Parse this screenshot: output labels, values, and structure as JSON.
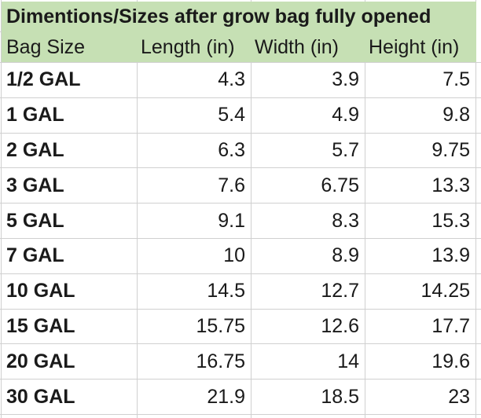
{
  "title": "Dimentions/Sizes after grow bag fully opened",
  "columns": {
    "bag_size": "Bag Size",
    "length": "Length (in)",
    "width": "Width (in)",
    "height": "Height (in)"
  },
  "rows": [
    {
      "size": "1/2 GAL",
      "length": "4.3",
      "width": "3.9",
      "height": "7.5"
    },
    {
      "size": "1 GAL",
      "length": "5.4",
      "width": "4.9",
      "height": "9.8"
    },
    {
      "size": "2 GAL",
      "length": "6.3",
      "width": "5.7",
      "height": "9.75"
    },
    {
      "size": "3 GAL",
      "length": "7.6",
      "width": "6.75",
      "height": "13.3"
    },
    {
      "size": "5 GAL",
      "length": "9.1",
      "width": "8.3",
      "height": "15.3"
    },
    {
      "size": "7 GAL",
      "length": "10",
      "width": "8.9",
      "height": "13.9"
    },
    {
      "size": "10 GAL",
      "length": "14.5",
      "width": "12.7",
      "height": "14.25"
    },
    {
      "size": "15 GAL",
      "length": "15.75",
      "width": "12.6",
      "height": "17.7"
    },
    {
      "size": "20 GAL",
      "length": "16.75",
      "width": "14",
      "height": "19.6"
    },
    {
      "size": "30 GAL",
      "length": "21.9",
      "width": "18.5",
      "height": "23"
    }
  ],
  "colors": {
    "header_fill": "#c6e0b4",
    "gridline": "#d0d0d0",
    "text": "#1a1a1a",
    "background": "#ffffff"
  },
  "chart_data": {
    "type": "table",
    "title": "Dimentions/Sizes after grow bag fully opened",
    "columns": [
      "Bag Size",
      "Length (in)",
      "Width (in)",
      "Height (in)"
    ],
    "rows": [
      [
        "1/2 GAL",
        4.3,
        3.9,
        7.5
      ],
      [
        "1 GAL",
        5.4,
        4.9,
        9.8
      ],
      [
        "2 GAL",
        6.3,
        5.7,
        9.75
      ],
      [
        "3 GAL",
        7.6,
        6.75,
        13.3
      ],
      [
        "5 GAL",
        9.1,
        8.3,
        15.3
      ],
      [
        "7 GAL",
        10,
        8.9,
        13.9
      ],
      [
        "10 GAL",
        14.5,
        12.7,
        14.25
      ],
      [
        "15 GAL",
        15.75,
        12.6,
        17.7
      ],
      [
        "20 GAL",
        16.75,
        14,
        19.6
      ],
      [
        "30 GAL",
        21.9,
        18.5,
        23
      ]
    ],
    "layout": {
      "header_fill": "#c6e0b4",
      "gridlines": true,
      "value_alignment": "right",
      "label_style": "bold"
    }
  }
}
